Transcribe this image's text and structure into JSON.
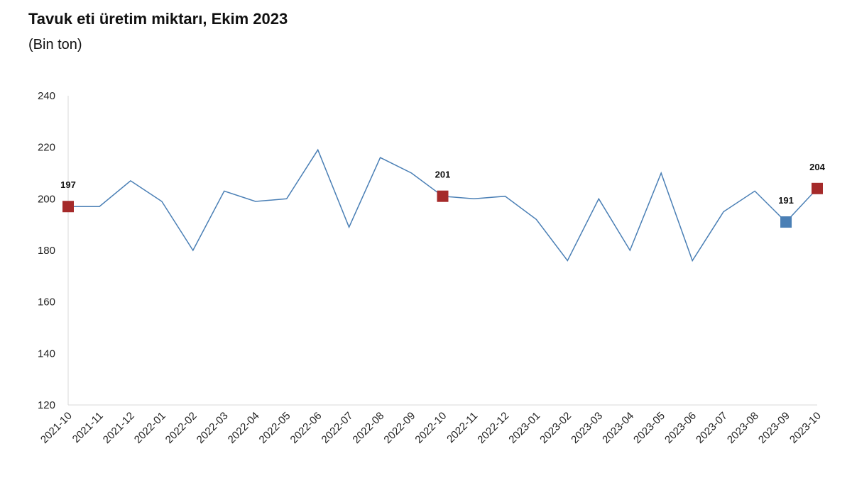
{
  "title": "Tavuk eti üretim miktarı, Ekim 2023",
  "subtitle": "(Bin ton)",
  "chart_data": {
    "type": "line",
    "title": "Tavuk eti üretim miktarı, Ekim 2023",
    "subtitle": "(Bin ton)",
    "xlabel": "",
    "ylabel": "",
    "ylim": [
      120,
      240
    ],
    "yticks": [
      120,
      140,
      160,
      180,
      200,
      220,
      240
    ],
    "grid": false,
    "categories": [
      "2021-10",
      "2021-11",
      "2021-12",
      "2022-01",
      "2022-02",
      "2022-03",
      "2022-04",
      "2022-05",
      "2022-06",
      "2022-07",
      "2022-08",
      "2022-09",
      "2022-10",
      "2022-11",
      "2022-12",
      "2023-01",
      "2023-02",
      "2023-03",
      "2023-04",
      "2023-05",
      "2023-06",
      "2023-07",
      "2023-08",
      "2023-09",
      "2023-10"
    ],
    "series": [
      {
        "color": "#4a7fb5",
        "values": [
          197,
          197,
          207,
          199,
          180,
          203,
          199,
          200,
          219,
          189,
          216,
          210,
          201,
          200,
          201,
          192,
          176,
          200,
          180,
          210,
          176,
          195,
          203,
          191,
          204
        ]
      }
    ],
    "highlights": [
      {
        "category": "2021-10",
        "value": 197,
        "label": "197",
        "color": "#a52a2a"
      },
      {
        "category": "2022-10",
        "value": 201,
        "label": "201",
        "color": "#a52a2a"
      },
      {
        "category": "2023-09",
        "value": 191,
        "label": "191",
        "color": "#4a7fb5"
      },
      {
        "category": "2023-10",
        "value": 204,
        "label": "204",
        "color": "#a52a2a"
      }
    ]
  }
}
